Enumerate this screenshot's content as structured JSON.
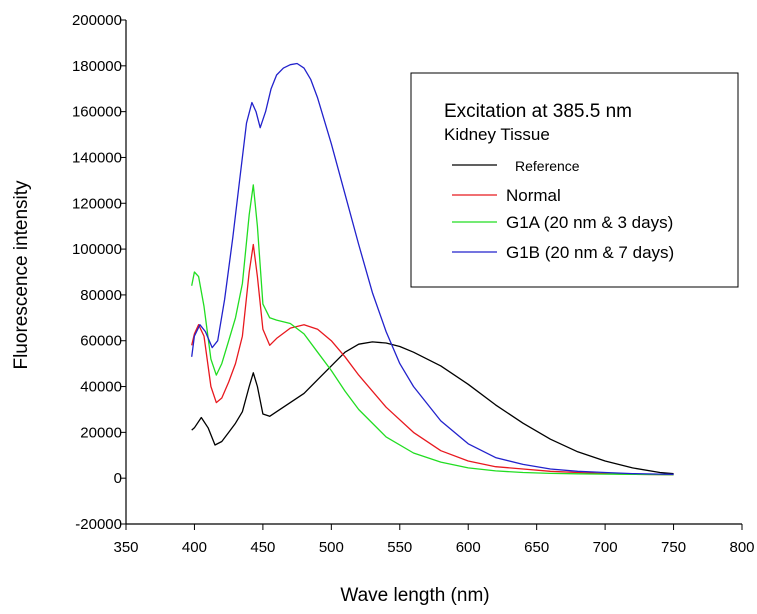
{
  "chart_data": {
    "type": "line",
    "xlabel": "Wave length (nm)",
    "ylabel": "Fluorescence  intensity",
    "xlim": [
      350,
      800
    ],
    "ylim": [
      -20000,
      200000
    ],
    "x_ticks": [
      350,
      400,
      450,
      500,
      550,
      600,
      650,
      700,
      750,
      800
    ],
    "y_ticks": [
      -20000,
      0,
      20000,
      40000,
      60000,
      80000,
      100000,
      120000,
      140000,
      160000,
      180000,
      200000
    ],
    "x_tick_labels": [
      "350",
      "400",
      "450",
      "500",
      "550",
      "600",
      "650",
      "700",
      "750",
      "800"
    ],
    "y_tick_labels": [
      "-20000",
      "0",
      "20000",
      "40000",
      "60000",
      "80000",
      "100000",
      "120000",
      "140000",
      "160000",
      "180000",
      "200000"
    ],
    "grid": false,
    "legend": {
      "placement": "top-right",
      "title": "Excitation at 385.5 nm",
      "subtitle": "Kidney Tissue"
    },
    "series": [
      {
        "name": "Reference",
        "color": "#000000",
        "x": [
          398,
          400,
          405,
          410,
          415,
          420,
          425,
          430,
          435,
          440,
          443,
          446,
          450,
          455,
          460,
          470,
          480,
          490,
          500,
          510,
          520,
          530,
          540,
          550,
          560,
          580,
          600,
          620,
          640,
          660,
          680,
          700,
          720,
          740,
          750
        ],
        "y": [
          21000,
          22000,
          26500,
          22000,
          14500,
          16000,
          20000,
          24000,
          29000,
          40000,
          46000,
          40000,
          28000,
          27000,
          29000,
          33000,
          37000,
          43000,
          49000,
          55000,
          58500,
          59500,
          59000,
          57500,
          55000,
          49000,
          41000,
          32000,
          24000,
          17000,
          11500,
          7500,
          4500,
          2500,
          2000
        ]
      },
      {
        "name": "Normal",
        "color": "#e8191f",
        "x": [
          398,
          400,
          403,
          407,
          412,
          416,
          420,
          425,
          430,
          435,
          440,
          443,
          446,
          450,
          455,
          460,
          470,
          480,
          490,
          500,
          510,
          520,
          540,
          560,
          580,
          600,
          620,
          640,
          660,
          680,
          700,
          720,
          750
        ],
        "y": [
          58000,
          63000,
          67000,
          62000,
          40000,
          33000,
          35000,
          42000,
          50000,
          62000,
          90000,
          102000,
          88000,
          65000,
          58000,
          61000,
          65500,
          67000,
          65000,
          60000,
          53000,
          45000,
          31000,
          20000,
          12000,
          7500,
          5000,
          4000,
          3000,
          2500,
          2000,
          1700,
          1500
        ]
      },
      {
        "name": "G1A (20 nm & 3 days)",
        "color": "#22dd22",
        "x": [
          398,
          400,
          403,
          407,
          412,
          416,
          420,
          425,
          430,
          435,
          440,
          443,
          446,
          450,
          455,
          460,
          470,
          480,
          490,
          500,
          510,
          520,
          540,
          560,
          580,
          600,
          620,
          640,
          660,
          680,
          700,
          720,
          750
        ],
        "y": [
          84000,
          90000,
          88000,
          75000,
          52000,
          45000,
          50000,
          60000,
          70000,
          85000,
          115000,
          128000,
          110000,
          76000,
          70000,
          69000,
          67500,
          63000,
          55000,
          47000,
          38000,
          30000,
          18000,
          11000,
          7000,
          4500,
          3200,
          2500,
          2100,
          1900,
          1800,
          1700,
          1500
        ]
      },
      {
        "name": "G1B (20 nm & 7 days)",
        "color": "#2222cc",
        "x": [
          398,
          400,
          404,
          408,
          413,
          417,
          422,
          428,
          433,
          438,
          442,
          445,
          448,
          452,
          456,
          460,
          465,
          470,
          475,
          480,
          485,
          490,
          500,
          510,
          520,
          530,
          540,
          550,
          560,
          580,
          600,
          620,
          640,
          660,
          680,
          700,
          720,
          740,
          750
        ],
        "y": [
          53000,
          62000,
          67000,
          64000,
          57000,
          60000,
          78000,
          105000,
          130000,
          155000,
          164000,
          160000,
          153000,
          160000,
          170000,
          176000,
          179000,
          180500,
          181000,
          179000,
          174000,
          166000,
          146000,
          124000,
          102000,
          81000,
          64000,
          50000,
          40000,
          25000,
          15000,
          9000,
          6000,
          4000,
          3000,
          2500,
          2000,
          1800,
          1700
        ]
      }
    ]
  }
}
